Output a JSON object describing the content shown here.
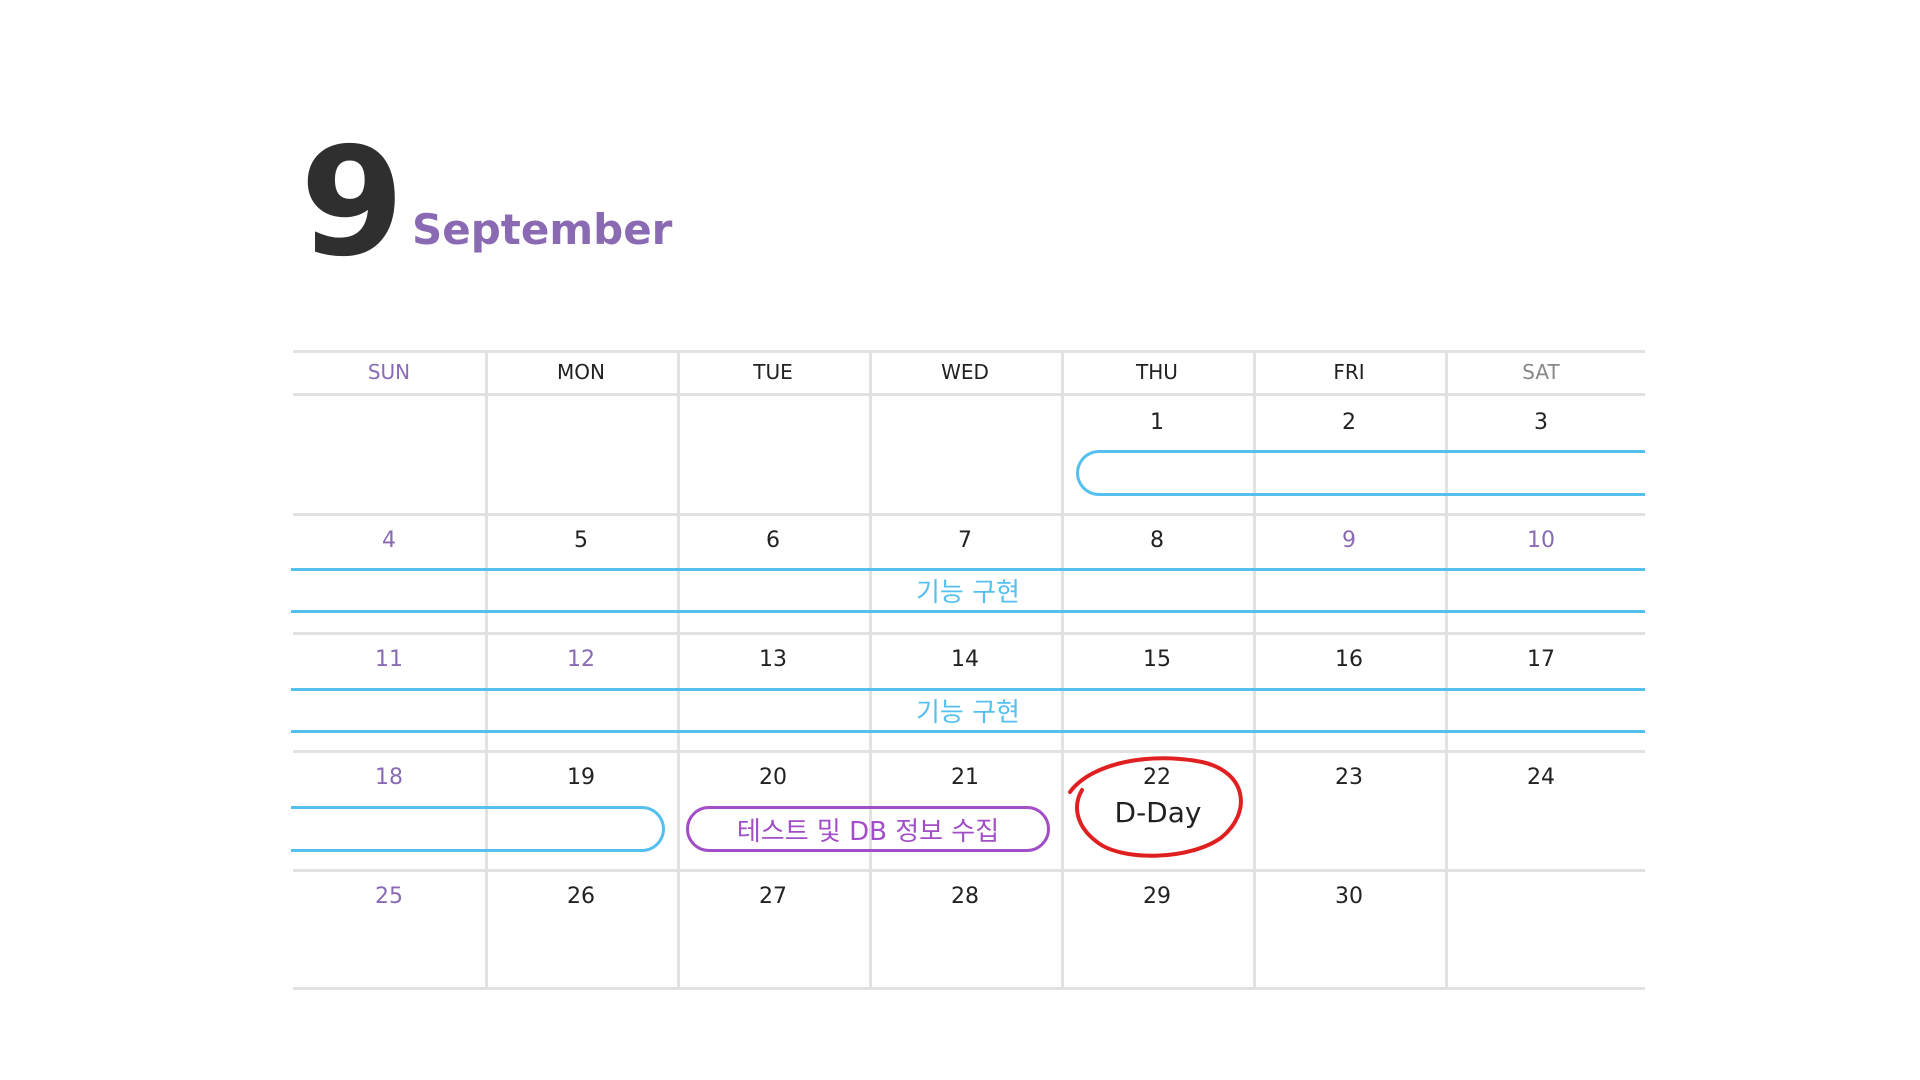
{
  "header": {
    "month_number": "9",
    "month_name": "September"
  },
  "weekdays": [
    "SUN",
    "MON",
    "TUE",
    "WED",
    "THU",
    "FRI",
    "SAT"
  ],
  "weeks": [
    [
      "",
      "",
      "",
      "",
      "1",
      "2",
      "3"
    ],
    [
      "4",
      "5",
      "6",
      "7",
      "8",
      "9",
      "10"
    ],
    [
      "11",
      "12",
      "13",
      "14",
      "15",
      "16",
      "17"
    ],
    [
      "18",
      "19",
      "20",
      "21",
      "22",
      "23",
      "24"
    ],
    [
      "25",
      "26",
      "27",
      "28",
      "29",
      "30",
      ""
    ]
  ],
  "highlighted_dates": [
    "4",
    "9",
    "10",
    "11",
    "12",
    "18",
    "25"
  ],
  "events": {
    "band_week2_label": "기능 구현",
    "band_week3_label": "기능 구현",
    "test_event_label": "테스트 및 DB 정보 수집",
    "dday_label": "D-Day"
  },
  "colors": {
    "accent_purple": "#8a6bb3",
    "band_blue": "#55c0ef",
    "event_purple": "#a24ec7",
    "dday_red": "#e02020"
  }
}
